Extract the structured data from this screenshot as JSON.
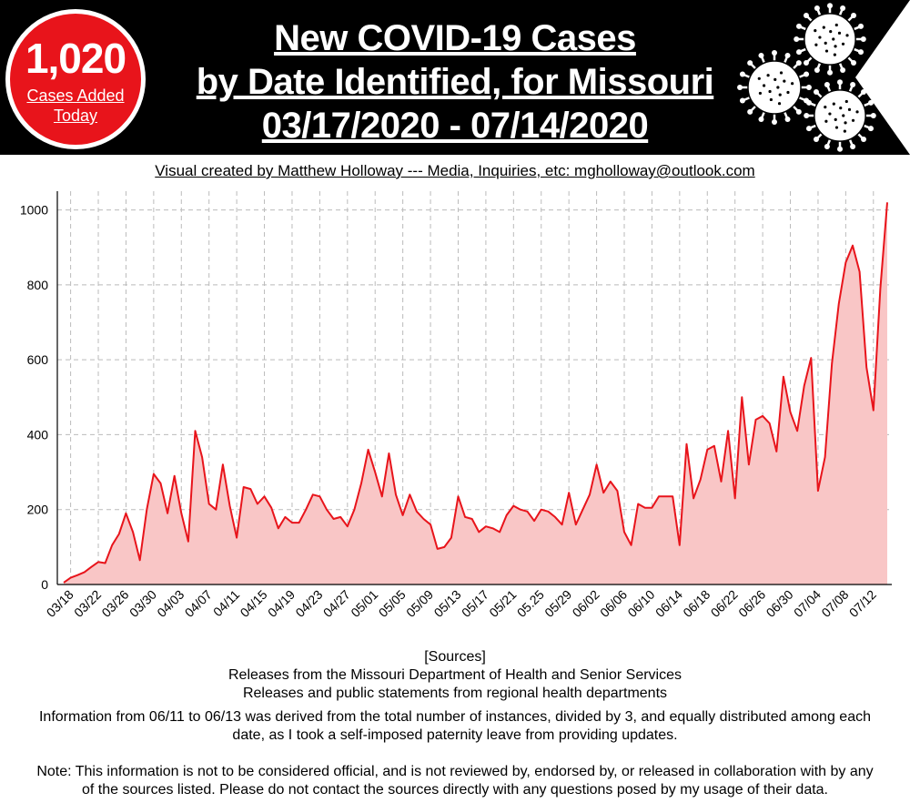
{
  "badge": {
    "number": "1,020",
    "line1": "Cases Added",
    "line2": "Today"
  },
  "title": {
    "line1": "New COVID-19 Cases",
    "line2": "by Date Identified, for Missouri",
    "line3": "03/17/2020 - 07/14/2020"
  },
  "credit": "Visual created by Matthew Holloway --- Media, Inquiries, etc: mgholloway@outlook.com",
  "sources": {
    "heading": "[Sources]",
    "line1": "Releases from the Missouri Department of Health and Senior Services",
    "line2": "Releases and public statements from regional health departments"
  },
  "info": "Information from 06/11 to 06/13 was derived from the total number of instances, divided by 3, and equally distributed among each date, as I took a self-imposed paternity leave from providing updates.",
  "note": "Note: This information is not to be considered official, and is not reviewed by, endorsed by, or released in collaboration with by any of the sources listed. Please do not contact the sources directly with any questions posed by my usage of their data.",
  "colors": {
    "banner": "#000000",
    "badge": "#e8141b",
    "line": "#e8141b",
    "fill": "#f9c6c6",
    "grid": "#bbbbbb"
  },
  "icons": [
    "virus-icon",
    "virus-icon",
    "virus-icon",
    "banner-arrow-icon"
  ],
  "chart_data": {
    "type": "area",
    "title": "New COVID-19 Cases by Date Identified, for Missouri",
    "xlabel": "",
    "ylabel": "",
    "ylim": [
      0,
      1050
    ],
    "yticks": [
      0,
      200,
      400,
      600,
      800,
      1000
    ],
    "grid": true,
    "x_start": "03/17",
    "x_end": "07/14",
    "xtick_labels": [
      "03/18",
      "03/22",
      "03/26",
      "03/30",
      "04/03",
      "04/07",
      "04/11",
      "04/15",
      "04/19",
      "04/23",
      "04/27",
      "05/01",
      "05/05",
      "05/09",
      "05/13",
      "05/17",
      "05/21",
      "05.25",
      "05/29",
      "06/02",
      "06/06",
      "06/10",
      "06/14",
      "06/18",
      "06/22",
      "06/26",
      "06/30",
      "07/04",
      "07/08",
      "07/12"
    ],
    "series": [
      {
        "values": [
          5,
          18,
          25,
          33,
          47,
          60,
          57,
          105,
          135,
          190,
          140,
          65,
          200,
          295,
          270,
          190,
          290,
          190,
          115,
          410,
          340,
          215,
          200,
          320,
          210,
          125,
          260,
          255,
          215,
          235,
          205,
          150,
          180,
          165,
          165,
          200,
          240,
          235,
          200,
          175,
          180,
          155,
          200,
          270,
          360,
          300,
          235,
          350,
          240,
          185,
          240,
          195,
          175,
          160,
          95,
          100,
          125,
          235,
          180,
          175,
          140,
          155,
          150,
          140,
          185,
          210,
          200,
          195,
          170,
          200,
          195,
          180,
          160,
          245,
          160,
          200,
          240,
          320,
          245,
          275,
          250,
          140,
          105,
          215,
          205,
          205,
          235,
          235,
          235,
          105,
          375,
          230,
          280,
          360,
          370,
          275,
          410,
          230,
          500,
          320,
          440,
          450,
          430,
          355,
          555,
          460,
          410,
          530,
          605,
          250,
          340,
          590,
          750,
          860,
          905,
          835,
          580,
          465,
          790,
          1020
        ]
      }
    ]
  }
}
